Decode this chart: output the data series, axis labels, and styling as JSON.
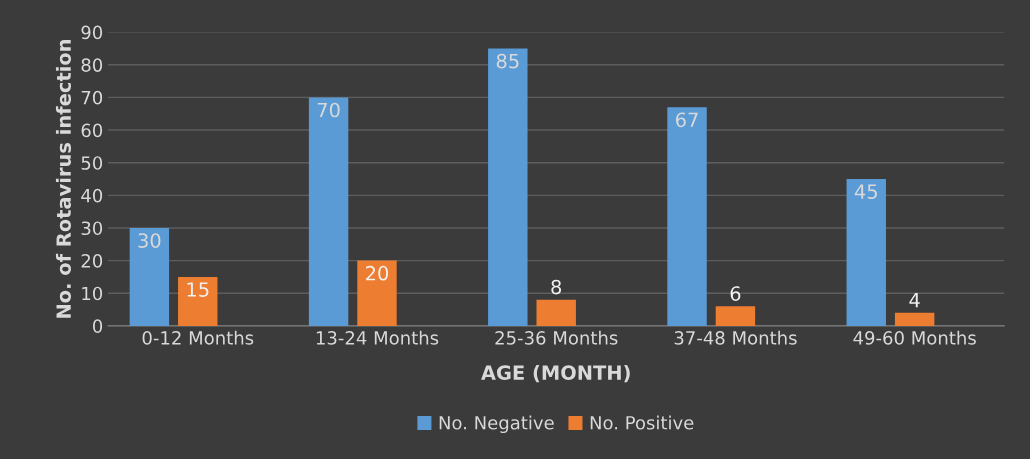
{
  "chart_data": {
    "type": "bar",
    "xlabel": "AGE (MONTH)",
    "ylabel": "No. of Rotavirus infection",
    "categories": [
      "0-12 Months",
      "13-24 Months",
      "25-36 Months",
      "37-48 Months",
      "49-60 Months"
    ],
    "series": [
      {
        "name": "No. Negative",
        "color": "#5b9bd5",
        "values": [
          30,
          70,
          85,
          67,
          45
        ]
      },
      {
        "name": "No. Positive",
        "color": "#ed7d31",
        "values": [
          15,
          20,
          8,
          6,
          4
        ]
      }
    ],
    "ylim": [
      0,
      90
    ],
    "yticks": [
      0,
      10,
      20,
      30,
      40,
      50,
      60,
      70,
      80,
      90
    ],
    "grid": "y",
    "legend": "bottom",
    "data_labels": true
  }
}
